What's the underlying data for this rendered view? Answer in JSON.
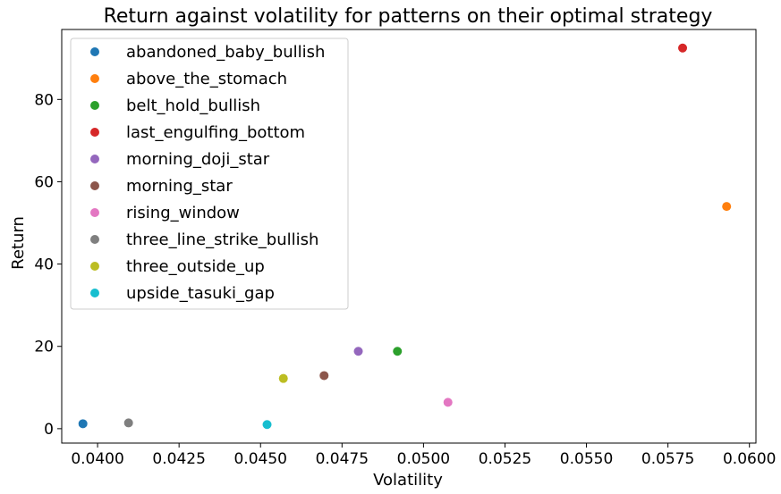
{
  "chart_data": {
    "type": "scatter",
    "title": "Return against volatility for patterns on their optimal strategy",
    "xlabel": "Volatility",
    "ylabel": "Return",
    "xlim": [
      0.0389,
      0.0602
    ],
    "ylim": [
      -3.5,
      97
    ],
    "xticks": [
      0.04,
      0.0425,
      0.045,
      0.0475,
      0.05,
      0.0525,
      0.055,
      0.0575,
      0.06
    ],
    "xtick_labels": [
      "0.0400",
      "0.0425",
      "0.0450",
      "0.0475",
      "0.0500",
      "0.0525",
      "0.0550",
      "0.0575",
      "0.0600"
    ],
    "yticks": [
      0,
      20,
      40,
      60,
      80
    ],
    "ytick_labels": [
      "0",
      "20",
      "40",
      "60",
      "80"
    ],
    "grid": false,
    "legend_position": "upper-left",
    "series": [
      {
        "name": "abandoned_baby_bullish",
        "color": "#1f77b4",
        "x": [
          0.03955
        ],
        "y": [
          1.2
        ]
      },
      {
        "name": "above_the_stomach",
        "color": "#ff7f0e",
        "x": [
          0.0593
        ],
        "y": [
          54.0
        ]
      },
      {
        "name": "belt_hold_bullish",
        "color": "#2ca02c",
        "x": [
          0.0492
        ],
        "y": [
          18.8
        ]
      },
      {
        "name": "last_engulfing_bottom",
        "color": "#d62728",
        "x": [
          0.05795
        ],
        "y": [
          92.5
        ]
      },
      {
        "name": "morning_doji_star",
        "color": "#9467bd",
        "x": [
          0.048
        ],
        "y": [
          18.8
        ]
      },
      {
        "name": "morning_star",
        "color": "#8c564b",
        "x": [
          0.04695
        ],
        "y": [
          12.9
        ]
      },
      {
        "name": "rising_window",
        "color": "#e377c2",
        "x": [
          0.05075
        ],
        "y": [
          6.4
        ]
      },
      {
        "name": "three_line_strike_bullish",
        "color": "#7f7f7f",
        "x": [
          0.04095
        ],
        "y": [
          1.4
        ]
      },
      {
        "name": "three_outside_up",
        "color": "#bcbd22",
        "x": [
          0.0457
        ],
        "y": [
          12.2
        ]
      },
      {
        "name": "upside_tasuki_gap",
        "color": "#17becf",
        "x": [
          0.0452
        ],
        "y": [
          1.0
        ]
      }
    ]
  }
}
